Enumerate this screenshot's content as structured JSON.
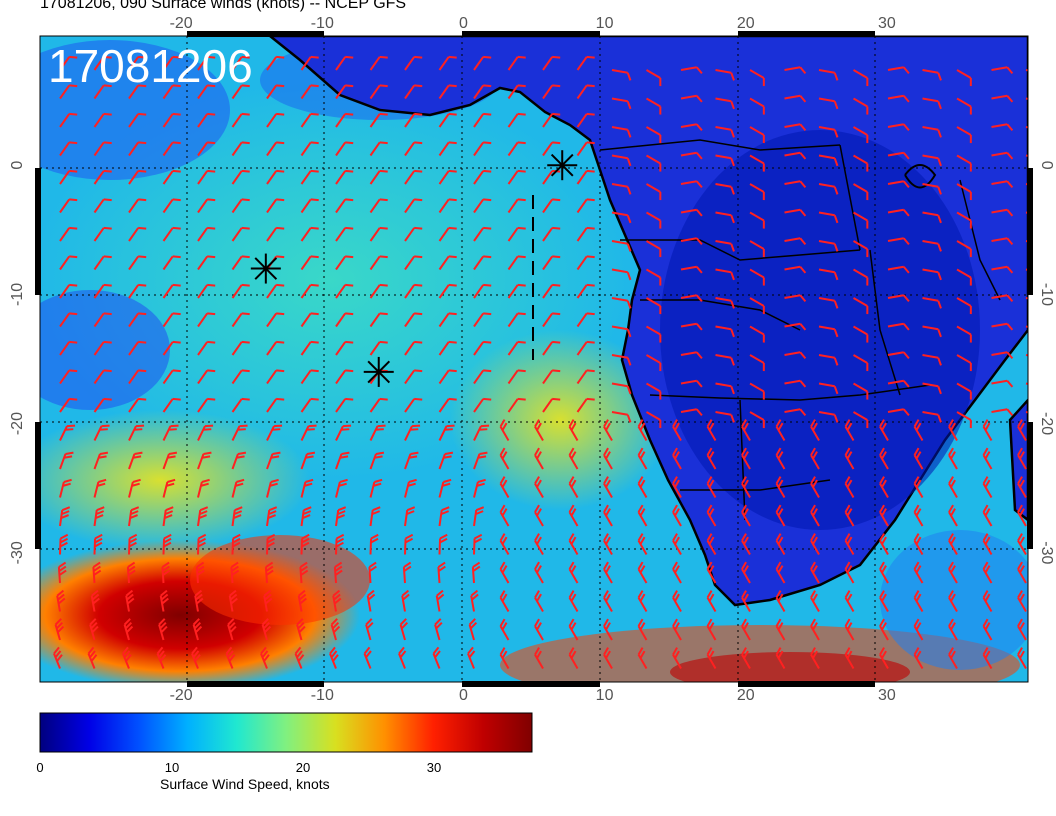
{
  "title": "17081206, 090 Surface winds (knots) -- NCEP GFS",
  "stamp": "17081206",
  "map": {
    "lon_range": [
      -30,
      40
    ],
    "lat_range": [
      -40,
      10
    ],
    "x_ticks": [
      "-20",
      "-10",
      "0",
      "10",
      "20",
      "30"
    ],
    "y_ticks": [
      "0",
      "-10",
      "-20",
      "-30"
    ],
    "barb_color": "#ff2020",
    "coast_color": "#000000",
    "markers": [
      {
        "lon": -14,
        "lat": -8
      },
      {
        "lon": -6,
        "lat": -16
      },
      {
        "lon": 7,
        "lat": 0
      }
    ]
  },
  "colorbar": {
    "label": "Surface Wind Speed, knots",
    "ticks": [
      "0",
      "10",
      "20",
      "30"
    ],
    "min": 0,
    "max": 36,
    "colors": [
      "#00007f",
      "#0000e6",
      "#0050ff",
      "#00b0ff",
      "#20e8d0",
      "#80f080",
      "#d8e020",
      "#ff9000",
      "#ff2000",
      "#c00000",
      "#800000"
    ]
  }
}
